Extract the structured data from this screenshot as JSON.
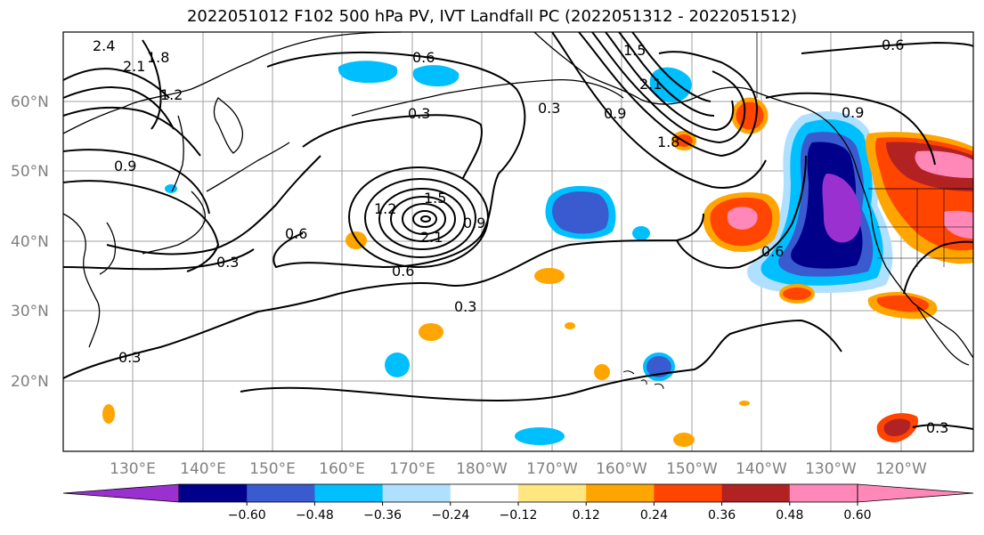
{
  "title": "2022051012 F102 500 hPa PV, IVT Landfall PC (2022051312 - 2022051512)",
  "lat_labels": [
    "60°N",
    "50°N",
    "40°N",
    "30°N",
    "20°N"
  ],
  "lon_labels": [
    "130°E",
    "140°E",
    "150°E",
    "160°E",
    "170°E",
    "180°W",
    "170°W",
    "160°W",
    "150°W",
    "140°W",
    "130°W",
    "120°W"
  ],
  "colorbar": {
    "ticks": [
      "−0.60",
      "−0.48",
      "−0.36",
      "−0.24",
      "−0.12",
      "0.12",
      "0.24",
      "0.36",
      "0.48",
      "0.60"
    ],
    "colors": [
      "#9b30d0",
      "#00008b",
      "#3a5bcf",
      "#00bfff",
      "#b0e0ff",
      "#ffffff",
      "#ffe680",
      "#ffa500",
      "#ff4500",
      "#b22222",
      "#ff88b8",
      "#ff88b8"
    ]
  },
  "contour_labels": [
    "2.4",
    "2.1",
    "1.8",
    "1.2",
    "0.9",
    "0.3",
    "0.6",
    "0.3",
    "1.2",
    "1.5",
    "0.9",
    "2.1",
    "0.6",
    "0.6",
    "0.3",
    "0.3",
    "0.3",
    "1.5",
    "2.1",
    "1.8",
    "0.9",
    "0.6",
    "0.6",
    "0.9",
    "0.3"
  ],
  "colors": {
    "grid": "#a0a0a0",
    "coast": "#000000",
    "purple": "#9b30d0",
    "navy": "#00008b",
    "royal": "#3a5bcf",
    "sky": "#00bfff",
    "pale_blue": "#b0e0ff",
    "yellow": "#ffe680",
    "orange": "#ffa500",
    "red_orange": "#ff4500",
    "dark_red": "#b22222",
    "pink": "#ff88b8"
  }
}
